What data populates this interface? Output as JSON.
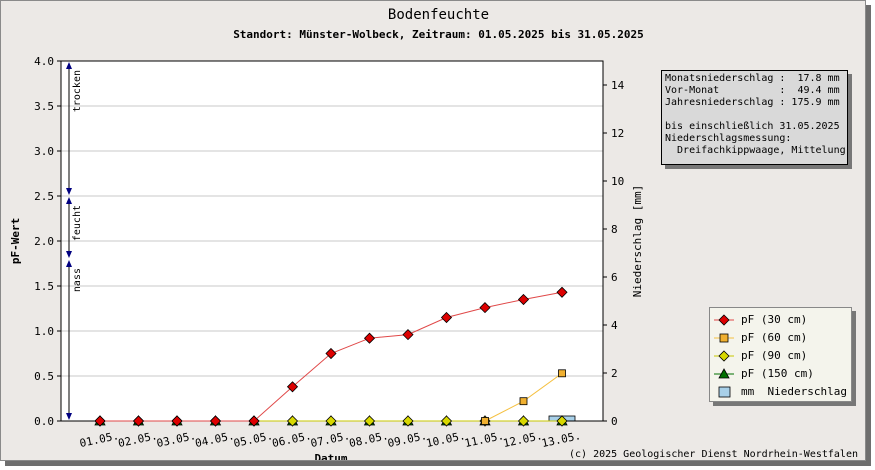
{
  "chart_data": {
    "type": "line",
    "title": "Bodenfeuchte",
    "subtitle": "Standort: Münster-Wolbeck, Zeitraum: 01.05.2025 bis 31.05.2025",
    "xlabel": "Datum",
    "ylabel": "pF-Wert",
    "y2label": "Niederschlag [mm]",
    "categories": [
      "01.05.",
      "02.05.",
      "03.05.",
      "04.05.",
      "05.05.",
      "06.05.",
      "07.05.",
      "08.05.",
      "09.05.",
      "10.05.",
      "11.05.",
      "12.05.",
      "13.05."
    ],
    "ylim": [
      0,
      4.0
    ],
    "yticks": [
      "0.0",
      "0.5",
      "1.0",
      "1.5",
      "2.0",
      "2.5",
      "3.0",
      "3.5",
      "4.0"
    ],
    "y2lim": [
      0,
      15
    ],
    "y2ticks": [
      "0",
      "2",
      "4",
      "6",
      "8",
      "10",
      "12",
      "14"
    ],
    "grid": true,
    "series": [
      {
        "name": "pF (30 cm)",
        "color": "#dd0000",
        "line_color": "#e04848",
        "marker": "diamond",
        "values": [
          0,
          0,
          0,
          0,
          0,
          0.38,
          0.75,
          0.92,
          0.96,
          1.15,
          1.26,
          1.35,
          1.43
        ]
      },
      {
        "name": "pF (60 cm)",
        "color": "#f0b030",
        "line_color": "#f5c040",
        "marker": "square",
        "values": [
          null,
          null,
          null,
          null,
          null,
          null,
          null,
          null,
          null,
          null,
          0,
          0.22,
          0.53
        ]
      },
      {
        "name": "pF (90 cm)",
        "color": "#d8d800",
        "line_color": "#c8c800",
        "marker": "diamond",
        "values": [
          0,
          0,
          0,
          0,
          0,
          0,
          0,
          0,
          0,
          0,
          0,
          0,
          0
        ]
      },
      {
        "name": "pF (150 cm)",
        "color": "#007000",
        "line_color": "#007000",
        "marker": "triangle",
        "values": [
          0,
          0,
          0,
          0,
          0,
          0,
          0,
          0,
          0,
          0,
          0,
          0,
          0
        ]
      }
    ],
    "precipitation": {
      "name": "mm  Niederschlag",
      "color": "#a8d0e8",
      "values": [
        0,
        0,
        0,
        0,
        0,
        0,
        0,
        0,
        0,
        0,
        0,
        0,
        0.2
      ]
    },
    "zones": [
      {
        "label": "trocken",
        "from": 2.5,
        "to": 4.0
      },
      {
        "label": "feucht",
        "from": 1.8,
        "to": 2.5
      },
      {
        "label": "nass",
        "from": 0,
        "to": 1.8
      }
    ],
    "legend_position": "bottom-right"
  },
  "info_box": {
    "lines": [
      "Monatsniederschlag :  17.8 mm",
      "Vor-Monat          :  49.4 mm",
      "Jahresniederschlag : 175.9 mm",
      "",
      "bis einschließlich 31.05.2025",
      "Niederschlagsmessung:",
      "  Dreifachkippwaage, Mittelung"
    ]
  },
  "credit": "(c) 2025 Geologischer Dienst Nordrhein-Westfalen"
}
